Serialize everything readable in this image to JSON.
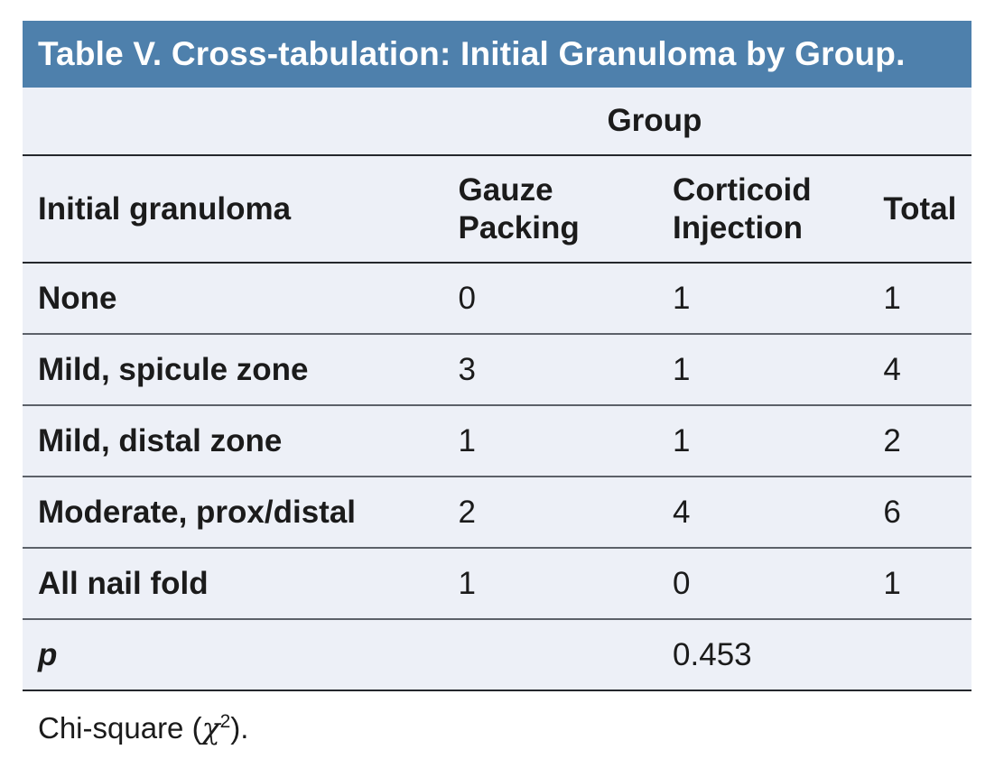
{
  "title": "Table V. Cross-tabulation: Initial Granuloma by Group.",
  "table": {
    "group_header": "Group",
    "columns": [
      "Initial granuloma",
      "Gauze Packing",
      "Corticoid Injection",
      "Total"
    ],
    "rows": [
      {
        "label": "None",
        "gauze": "0",
        "corticoid": "1",
        "total": "1"
      },
      {
        "label": "Mild, spicule zone",
        "gauze": "3",
        "corticoid": "1",
        "total": "4"
      },
      {
        "label": "Mild, distal zone",
        "gauze": "1",
        "corticoid": "1",
        "total": "2"
      },
      {
        "label": "Moderate, prox/distal",
        "gauze": "2",
        "corticoid": "4",
        "total": "6"
      },
      {
        "label": "All nail fold",
        "gauze": "1",
        "corticoid": "0",
        "total": "1"
      }
    ],
    "p_row": {
      "label": "p",
      "gauze": "",
      "corticoid": "0.453",
      "total": ""
    }
  },
  "footnote": {
    "prefix": "Chi-square (",
    "chi": "χ",
    "exponent": "2",
    "suffix": ")."
  },
  "colors": {
    "title_bar_bg": "#4E80AC",
    "title_text": "#FFFFFF",
    "table_row_bg": "#EDF0F7",
    "heavy_rule": "#24272C",
    "light_rule": "#5C6169",
    "body_text": "#1B1B1B"
  }
}
